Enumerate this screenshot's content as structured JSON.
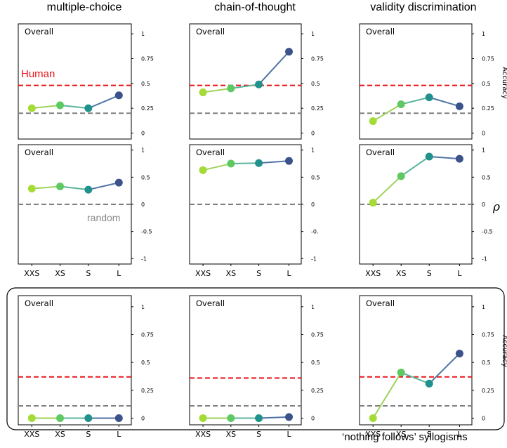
{
  "column_titles": [
    "multiple-choice",
    "chain-of-thought",
    "validity discrimination"
  ],
  "footer": "‘nothing follows’ syllogisms",
  "side_labels": {
    "accuracy_top": "Accuracy",
    "accuracy_bottom": "Accuracy",
    "rho": "ρ"
  },
  "annotations": {
    "human": "Human",
    "random": "random"
  },
  "panel_label": "Overall",
  "colors": {
    "human_line": "#e8141a",
    "random_line": "#808080",
    "point_colors": [
      "#a5db36",
      "#5ec962",
      "#21918c",
      "#3b528b"
    ],
    "line_colors": [
      "#9ed35a",
      "#5bb59c",
      "#4f74a4"
    ],
    "box": "#000000"
  },
  "chart_data": [
    {
      "type": "line",
      "row": 0,
      "col": 0,
      "title": "Overall",
      "categories": [
        "XXS",
        "XS",
        "S",
        "L"
      ],
      "values": [
        0.25,
        0.28,
        0.25,
        0.38
      ],
      "ylim": [
        -0.06,
        1.1
      ],
      "yticks": [
        "1",
        "0.75",
        "0.5",
        "0.25",
        "0"
      ],
      "human": 0.48,
      "random": 0.2
    },
    {
      "type": "line",
      "row": 0,
      "col": 1,
      "title": "Overall",
      "categories": [
        "XXS",
        "XS",
        "S",
        "L"
      ],
      "values": [
        0.41,
        0.45,
        0.49,
        0.82
      ],
      "ylim": [
        -0.06,
        1.1
      ],
      "yticks": [
        "1",
        "0.75",
        "0.5",
        "0.25",
        "0"
      ],
      "human": 0.48,
      "random": 0.2
    },
    {
      "type": "line",
      "row": 0,
      "col": 2,
      "title": "Overall",
      "categories": [
        "XXS",
        "XS",
        "S",
        "L"
      ],
      "values": [
        0.12,
        0.29,
        0.36,
        0.27
      ],
      "ylim": [
        -0.06,
        1.1
      ],
      "yticks": [
        "1",
        "0.75",
        "0.5",
        "0.25",
        "0"
      ],
      "human": 0.48,
      "random": 0.2
    },
    {
      "type": "line",
      "row": 1,
      "col": 0,
      "title": "Overall",
      "categories": [
        "XXS",
        "XS",
        "S",
        "L"
      ],
      "values": [
        0.29,
        0.33,
        0.27,
        0.4
      ],
      "ylim": [
        -1.1,
        1.1
      ],
      "yticks": [
        "1",
        "0.5",
        "0",
        "-0.5",
        "-1"
      ],
      "random": 0.0
    },
    {
      "type": "line",
      "row": 1,
      "col": 1,
      "title": "Overall",
      "categories": [
        "XXS",
        "XS",
        "S",
        "L"
      ],
      "values": [
        0.63,
        0.75,
        0.76,
        0.8
      ],
      "ylim": [
        -1.1,
        1.1
      ],
      "yticks": [
        "1",
        "0.5",
        "0",
        "-0.",
        "-1"
      ],
      "random": 0.0
    },
    {
      "type": "line",
      "row": 1,
      "col": 2,
      "title": "Overall",
      "categories": [
        "XXS",
        "XS",
        "S",
        "L"
      ],
      "values": [
        0.03,
        0.52,
        0.88,
        0.84
      ],
      "ylim": [
        -1.1,
        1.1
      ],
      "yticks": [
        "1",
        "0.5",
        "0",
        "-0.5",
        "-1"
      ],
      "random": 0.0
    },
    {
      "type": "line",
      "row": 2,
      "col": 0,
      "title": "Overall",
      "categories": [
        "XXS",
        "XS",
        "S",
        "L"
      ],
      "values": [
        0.0,
        0.0,
        0.0,
        0.0
      ],
      "ylim": [
        -0.06,
        1.1
      ],
      "yticks": [
        "1",
        "0.75",
        "0.5",
        "0.25",
        "0"
      ],
      "human": 0.37,
      "random": 0.11
    },
    {
      "type": "line",
      "row": 2,
      "col": 1,
      "title": "Overall",
      "categories": [
        "XXS",
        "XS",
        "S",
        "L"
      ],
      "values": [
        0.0,
        0.0,
        0.0,
        0.01
      ],
      "ylim": [
        -0.06,
        1.1
      ],
      "yticks": [
        "1",
        "0.75",
        "0.5",
        "0.25",
        "0"
      ],
      "human": 0.36,
      "random": 0.11
    },
    {
      "type": "line",
      "row": 2,
      "col": 2,
      "title": "Overall",
      "categories": [
        "XXS",
        "XS",
        "S",
        "L"
      ],
      "values": [
        0.0,
        0.41,
        0.31,
        0.58
      ],
      "ylim": [
        -0.06,
        1.1
      ],
      "yticks": [
        "1",
        "0.75",
        "0.5",
        "0.25",
        "0"
      ],
      "human": 0.37,
      "random": 0.11
    }
  ]
}
